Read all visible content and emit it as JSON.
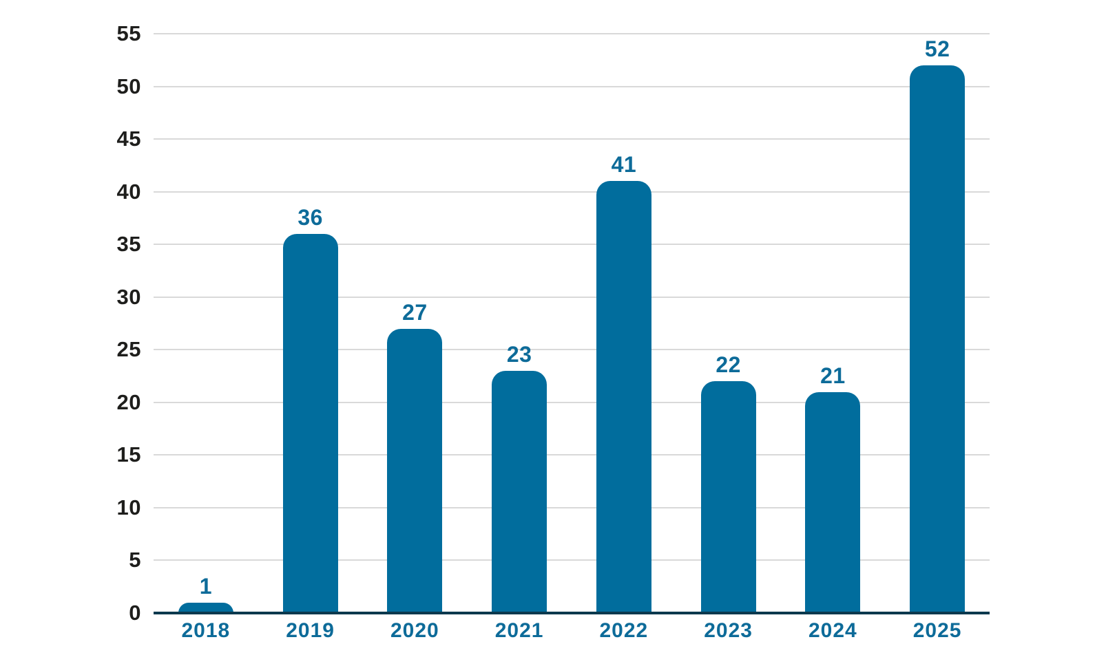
{
  "chart_data": {
    "type": "bar",
    "title": "",
    "xlabel": "",
    "ylabel": "",
    "categories": [
      "2018",
      "2019",
      "2020",
      "2021",
      "2022",
      "2023",
      "2024",
      "2025"
    ],
    "values": [
      1,
      36,
      27,
      23,
      41,
      22,
      21,
      52
    ],
    "ylim": [
      0,
      55
    ],
    "yticks": [
      0,
      5,
      10,
      15,
      20,
      25,
      30,
      35,
      40,
      45,
      50,
      55
    ],
    "grid": "horizontal",
    "legend": "none",
    "bar_value_labels_shown": true
  },
  "colors": {
    "bar": "#016d9d",
    "value_label": "#0d6b99",
    "x_tick_label": "#0d6b99",
    "y_tick_label": "#1e1e1c",
    "axis_line": "#0c394e",
    "gridline": "#d9d9d9",
    "background": "#ffffff"
  }
}
